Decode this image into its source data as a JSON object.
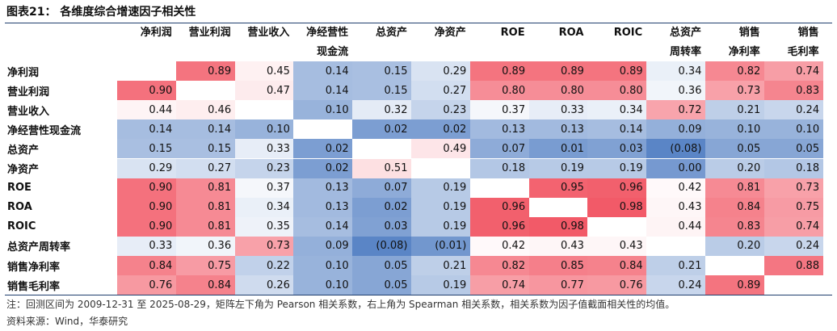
{
  "figure": {
    "title": "图表21：  各维度综合增速因子相关性",
    "note": "注：回测区间为 2009-12-31 至 2025-08-29，矩阵左下角为 Pearson 相关系数，右上角为 Spearman 相关系数，相关系数为因子值截面相关性的均值。",
    "source": "资料来源：Wind，华泰研究"
  },
  "colors": {
    "positive": "#f25a68",
    "negative": "#5a85c6",
    "neutral": "#ffffff",
    "rule": "#1f3e6e"
  },
  "table": {
    "columns": [
      [
        "净利润"
      ],
      [
        "营业利润"
      ],
      [
        "营业收入"
      ],
      [
        "净经营性",
        "现金流"
      ],
      [
        "总资产"
      ],
      [
        "净资产"
      ],
      [
        "ROE"
      ],
      [
        "ROA"
      ],
      [
        "ROIC"
      ],
      [
        "总资产",
        "周转率"
      ],
      [
        "销售",
        "净利率"
      ],
      [
        "销售",
        "毛利率"
      ]
    ],
    "rows": [
      {
        "label": "净利润",
        "cells": [
          "",
          "0.89",
          "0.45",
          "0.14",
          "0.15",
          "0.29",
          "0.89",
          "0.89",
          "0.89",
          "0.34",
          "0.82",
          "0.74"
        ]
      },
      {
        "label": "营业利润",
        "cells": [
          "0.90",
          "",
          "0.47",
          "0.14",
          "0.15",
          "0.27",
          "0.80",
          "0.80",
          "0.80",
          "0.36",
          "0.73",
          "0.83"
        ]
      },
      {
        "label": "营业收入",
        "cells": [
          "0.44",
          "0.46",
          "",
          "0.10",
          "0.32",
          "0.23",
          "0.37",
          "0.33",
          "0.34",
          "0.72",
          "0.21",
          "0.24"
        ]
      },
      {
        "label": "净经营性现金流",
        "cells": [
          "0.14",
          "0.14",
          "0.10",
          "",
          "0.02",
          "0.02",
          "0.13",
          "0.13",
          "0.14",
          "0.09",
          "0.10",
          "0.10"
        ]
      },
      {
        "label": "总资产",
        "cells": [
          "0.15",
          "0.15",
          "0.33",
          "0.02",
          "",
          "0.49",
          "0.07",
          "0.01",
          "0.03",
          "(0.08)",
          "0.05",
          "0.05"
        ]
      },
      {
        "label": "净资产",
        "cells": [
          "0.29",
          "0.27",
          "0.23",
          "0.02",
          "0.51",
          "",
          "0.18",
          "0.19",
          "0.19",
          "0.00",
          "0.20",
          "0.18"
        ]
      },
      {
        "label": "ROE",
        "cells": [
          "0.90",
          "0.81",
          "0.37",
          "0.13",
          "0.07",
          "0.19",
          "",
          "0.95",
          "0.96",
          "0.42",
          "0.81",
          "0.73"
        ]
      },
      {
        "label": "ROA",
        "cells": [
          "0.90",
          "0.81",
          "0.34",
          "0.13",
          "0.02",
          "0.19",
          "0.96",
          "",
          "0.98",
          "0.43",
          "0.84",
          "0.75"
        ]
      },
      {
        "label": "ROIC",
        "cells": [
          "0.90",
          "0.81",
          "0.35",
          "0.14",
          "0.03",
          "0.19",
          "0.96",
          "0.98",
          "",
          "0.44",
          "0.83",
          "0.74"
        ]
      },
      {
        "label": "总资产周转率",
        "cells": [
          "0.33",
          "0.36",
          "0.73",
          "0.09",
          "(0.08)",
          "(0.01)",
          "0.42",
          "0.43",
          "0.43",
          "",
          "0.20",
          "0.24"
        ]
      },
      {
        "label": "销售净利率",
        "cells": [
          "0.84",
          "0.75",
          "0.22",
          "0.10",
          "0.05",
          "0.21",
          "0.82",
          "0.85",
          "0.84",
          "0.21",
          "",
          "0.88"
        ]
      },
      {
        "label": "销售毛利率",
        "cells": [
          "0.76",
          "0.84",
          "0.26",
          "0.10",
          "0.05",
          "0.19",
          "0.74",
          "0.77",
          "0.76",
          "0.24",
          "0.89",
          ""
        ]
      }
    ]
  }
}
